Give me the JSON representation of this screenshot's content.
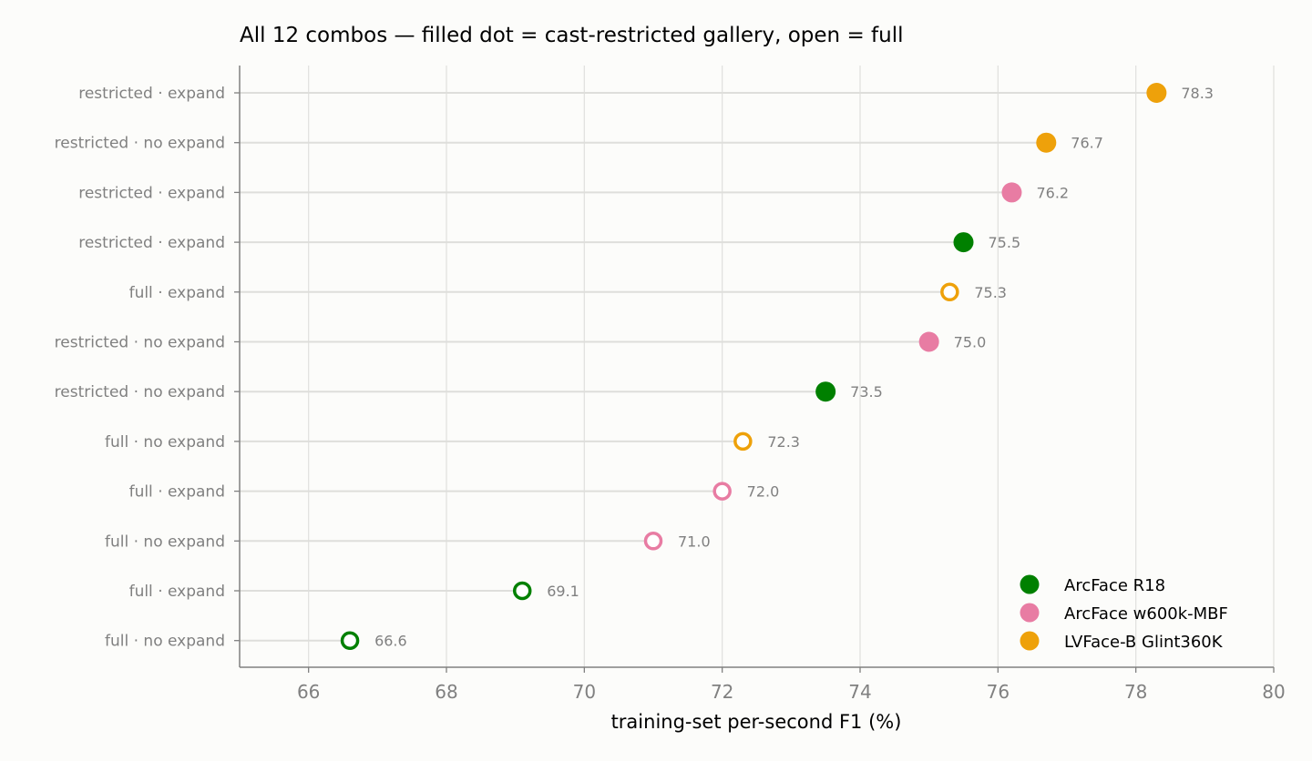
{
  "chart_data": {
    "type": "scatter",
    "title": "All 12 combos — filled dot = cast-restricted gallery, open = full",
    "xlabel": "training-set per-second F1 (%)",
    "ylabel": "",
    "xlim": [
      65,
      80
    ],
    "xticks": [
      66,
      68,
      70,
      72,
      74,
      76,
      78,
      80
    ],
    "grid": "vertical",
    "legend_position": "bottom-right",
    "series": [
      {
        "name": "ArcFace R18",
        "color": "#008000"
      },
      {
        "name": "ArcFace w600k-MBF",
        "color": "#e87ca3"
      },
      {
        "name": "LVFace-B Glint360K",
        "color": "#eea10a"
      }
    ],
    "rows": [
      {
        "label": "restricted · expand",
        "value": 78.3,
        "value_label": "78.3",
        "series": 2,
        "filled": true
      },
      {
        "label": "restricted · no expand",
        "value": 76.7,
        "value_label": "76.7",
        "series": 2,
        "filled": true
      },
      {
        "label": "restricted · expand",
        "value": 76.2,
        "value_label": "76.2",
        "series": 1,
        "filled": true
      },
      {
        "label": "restricted · expand",
        "value": 75.5,
        "value_label": "75.5",
        "series": 0,
        "filled": true
      },
      {
        "label": "full · expand",
        "value": 75.3,
        "value_label": "75.3",
        "series": 2,
        "filled": false
      },
      {
        "label": "restricted · no expand",
        "value": 75.0,
        "value_label": "75.0",
        "series": 1,
        "filled": true
      },
      {
        "label": "restricted · no expand",
        "value": 73.5,
        "value_label": "73.5",
        "series": 0,
        "filled": true
      },
      {
        "label": "full · no expand",
        "value": 72.3,
        "value_label": "72.3",
        "series": 2,
        "filled": false
      },
      {
        "label": "full · expand",
        "value": 72.0,
        "value_label": "72.0",
        "series": 1,
        "filled": false
      },
      {
        "label": "full · no expand",
        "value": 71.0,
        "value_label": "71.0",
        "series": 1,
        "filled": false
      },
      {
        "label": "full · expand",
        "value": 69.1,
        "value_label": "69.1",
        "series": 0,
        "filled": false
      },
      {
        "label": "full · no expand",
        "value": 66.6,
        "value_label": "66.6",
        "series": 0,
        "filled": false
      }
    ]
  }
}
